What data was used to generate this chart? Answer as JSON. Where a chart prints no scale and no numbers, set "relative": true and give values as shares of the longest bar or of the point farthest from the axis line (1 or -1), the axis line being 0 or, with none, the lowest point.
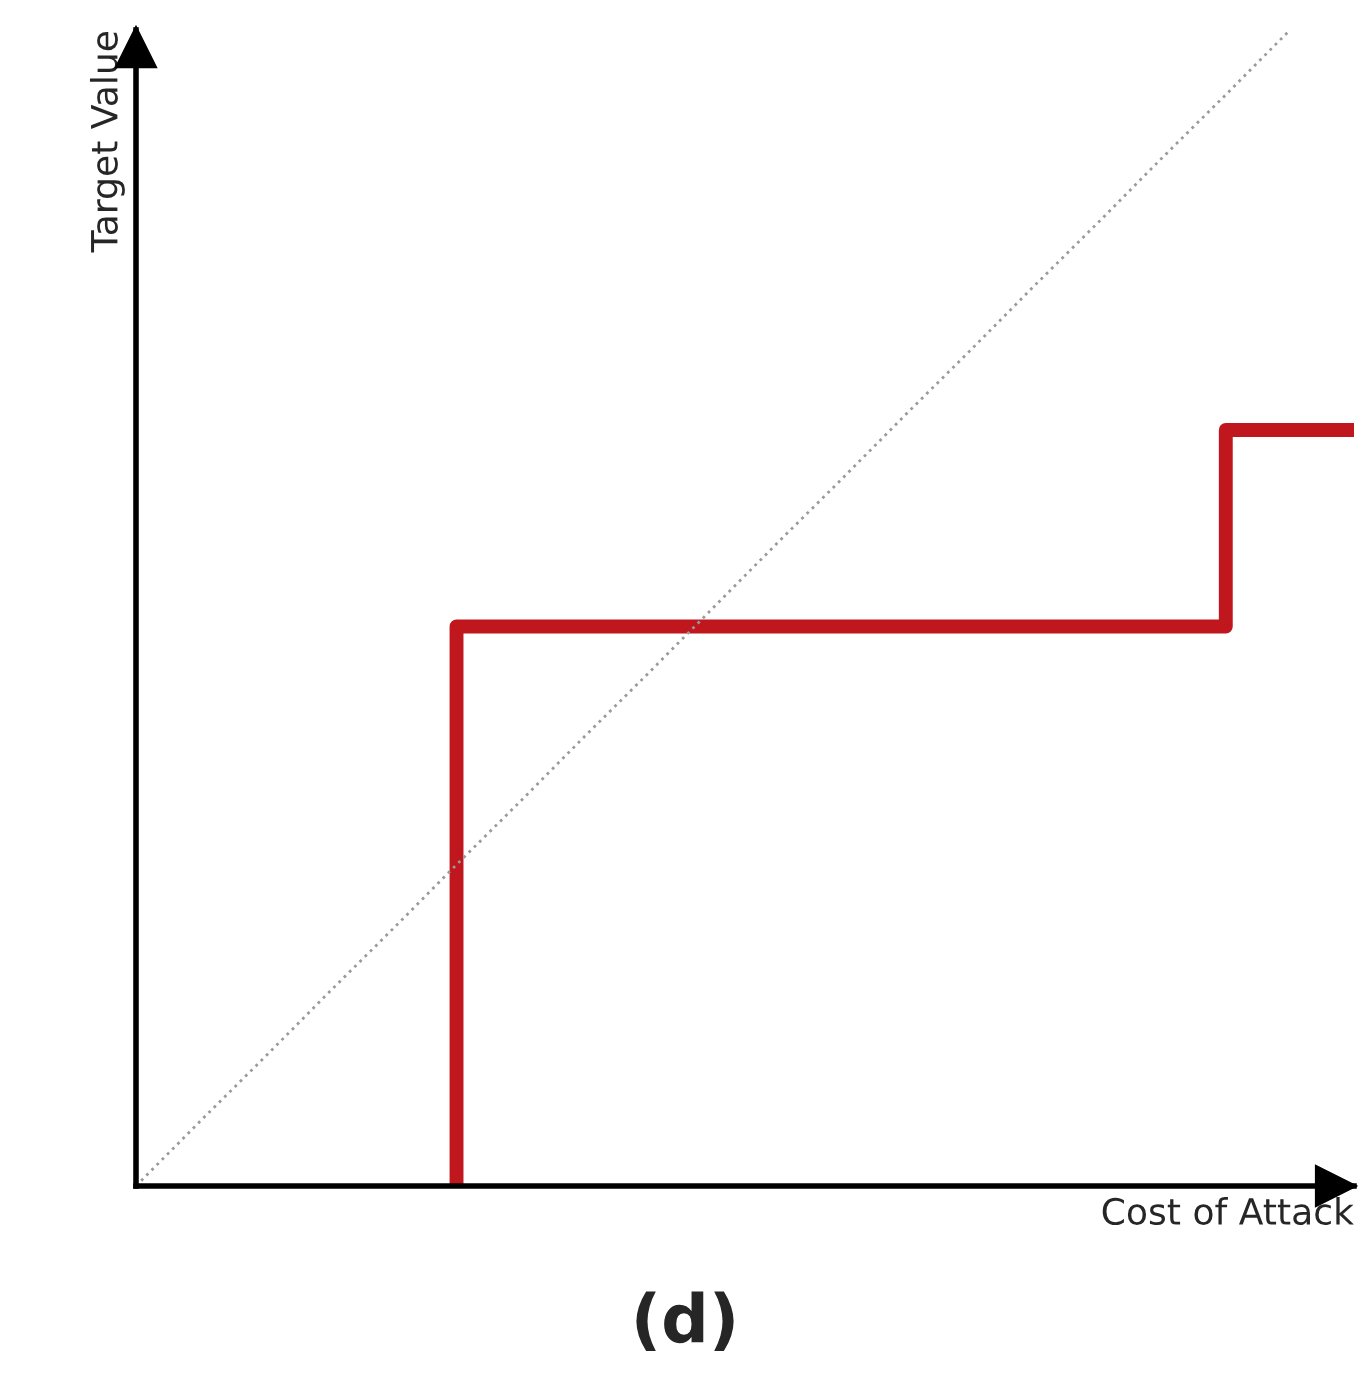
{
  "chart_data": {
    "type": "line",
    "relative": true,
    "xlabel": "Cost of Attack",
    "ylabel": "Target Value",
    "tick_labels": false,
    "categories": [
      null,
      null,
      null,
      null,
      null,
      null,
      null,
      null,
      null,
      null,
      null,
      null,
      null,
      null,
      null,
      null,
      null,
      null,
      null,
      null
    ],
    "series": [
      {
        "type": "step",
        "color": "#c0161d",
        "line_style": "solid",
        "values": [
          null,
          null,
          null,
          null,
          null,
          0,
          0.484,
          0.484,
          0.484,
          0.484,
          0.484,
          0.484,
          0.484,
          0.484,
          0.484,
          0.484,
          0.484,
          0.484,
          0.654,
          0.654
        ]
      },
      {
        "color": "#9a9a9a",
        "line_style": "dotted",
        "values": [
          0,
          0.056,
          0.111,
          0.167,
          0.222,
          0.278,
          0.333,
          0.389,
          0.444,
          0.5,
          0.556,
          0.611,
          0.667,
          0.722,
          0.778,
          0.833,
          0.889,
          0.944,
          1,
          null
        ]
      }
    ],
    "annotations": [
      "(d)"
    ]
  }
}
